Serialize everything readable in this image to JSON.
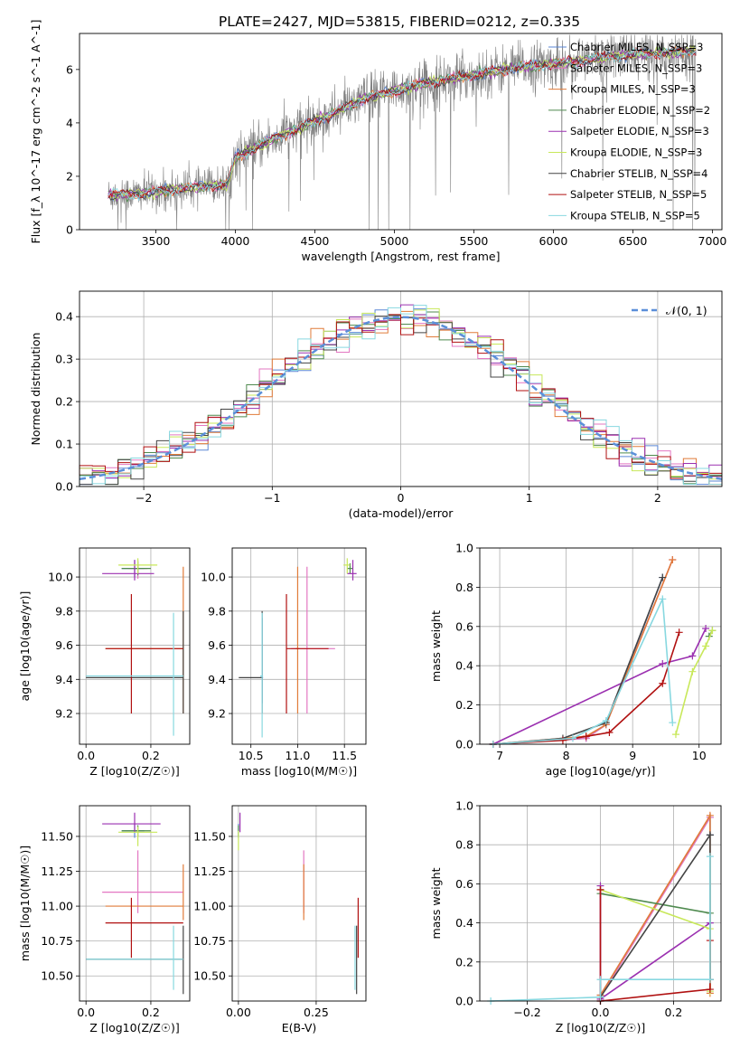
{
  "figure_title": "PLATE=2427, MJD=53815, FIBERID=0212, z=0.335",
  "colors": {
    "chabrier_miles": "#5b87d6",
    "salpeter_miles": "#e377c2",
    "kroupa_miles": "#e07b39",
    "chabrier_elodie": "#4f8a4f",
    "salpeter_elodie": "#9b30b0",
    "kroupa_elodie": "#c8e85a",
    "chabrier_stelib": "#444444",
    "salpeter_stelib": "#b01010",
    "kroupa_stelib": "#88d8e0",
    "data": "#808080",
    "normal": "#5b8fd9",
    "grid": "#b0b0b0"
  },
  "chart_data": [
    {
      "id": "spectrum",
      "type": "line",
      "title": "PLATE=2427, MJD=53815, FIBERID=0212, z=0.335",
      "xlabel": "wavelength [Angstrom, rest frame]",
      "ylabel": "Flux [f_λ 10^-17 erg cm^-2 s^-1 A^-1]",
      "xlim": [
        3020,
        7060
      ],
      "ylim": [
        0,
        7.35
      ],
      "xticks": [
        3500,
        4000,
        4500,
        5000,
        5500,
        6000,
        6500,
        7000
      ],
      "yticks": [
        0,
        2,
        4,
        6
      ],
      "legend_position": "top-right",
      "series": [
        {
          "name": "Chabrier MILES, N_SSP=3",
          "key": "chabrier_miles"
        },
        {
          "name": "Salpeter MILES, N_SSP=3",
          "key": "salpeter_miles"
        },
        {
          "name": "Kroupa MILES, N_SSP=3",
          "key": "kroupa_miles"
        },
        {
          "name": "Chabrier ELODIE, N_SSP=2",
          "key": "chabrier_elodie"
        },
        {
          "name": "Salpeter ELODIE, N_SSP=3",
          "key": "salpeter_elodie"
        },
        {
          "name": "Kroupa ELODIE, N_SSP=3",
          "key": "kroupa_elodie"
        },
        {
          "name": "Chabrier STELIB, N_SSP=4",
          "key": "chabrier_stelib"
        },
        {
          "name": "Salpeter STELIB, N_SSP=5",
          "key": "salpeter_stelib"
        },
        {
          "name": "Kroupa STELIB, N_SSP=5",
          "key": "kroupa_stelib"
        }
      ],
      "continuum": {
        "x": [
          3200,
          3400,
          3600,
          3800,
          3950,
          4000,
          4200,
          4400,
          4600,
          4800,
          5000,
          5200,
          5400,
          5600,
          5800,
          6000,
          6200,
          6400,
          6600,
          6800,
          6900
        ],
        "y": [
          1.3,
          1.35,
          1.5,
          1.6,
          1.7,
          2.7,
          3.3,
          3.8,
          4.3,
          4.9,
          5.2,
          5.5,
          5.7,
          5.9,
          6.1,
          6.2,
          6.35,
          6.5,
          6.6,
          6.65,
          6.7
        ]
      }
    },
    {
      "id": "residuals",
      "type": "bar",
      "xlabel": "(data-model)/error",
      "ylabel": "Normed distribution",
      "xlim": [
        -2.5,
        2.5
      ],
      "ylim": [
        0,
        0.46
      ],
      "xticks": [
        -2,
        -1,
        0,
        1,
        2
      ],
      "yticks": [
        0.0,
        0.1,
        0.2,
        0.3,
        0.4
      ],
      "legend": "𝒩(0, 1)",
      "legend_position": "top-right",
      "bin_width": 0.1
    },
    {
      "id": "z_age",
      "type": "scatter",
      "xlabel": "Z [log10(Z/Z☉)]",
      "ylabel": "age [log10(age/yr)]",
      "xlim": [
        -0.02,
        0.32
      ],
      "ylim": [
        9.02,
        10.17
      ],
      "xticks": [
        0.0,
        0.2
      ],
      "yticks": [
        9.2,
        9.4,
        9.6,
        9.8,
        10.0
      ],
      "points": [
        {
          "key": "chabrier_miles",
          "x": 0.15,
          "y": 10.05,
          "xerr": [
            0.04,
            0.03
          ],
          "yerr": [
            0.05,
            0.05
          ]
        },
        {
          "key": "salpeter_miles",
          "x": 0.16,
          "y": 10.05,
          "xerr": [
            0.03,
            0.03
          ],
          "yerr": [
            0.06,
            0.05
          ]
        },
        {
          "key": "kroupa_miles",
          "x": 0.3,
          "y": 9.58,
          "xerr": [
            0.24,
            0.0
          ],
          "yerr": [
            0.38,
            0.48
          ]
        },
        {
          "key": "chabrier_elodie",
          "x": 0.16,
          "y": 10.05,
          "xerr": [
            0.05,
            0.04
          ],
          "yerr": [
            0.04,
            0.04
          ]
        },
        {
          "key": "salpeter_elodie",
          "x": 0.15,
          "y": 10.02,
          "xerr": [
            0.1,
            0.06
          ],
          "yerr": [
            0.04,
            0.08
          ]
        },
        {
          "key": "kroupa_elodie",
          "x": 0.16,
          "y": 10.07,
          "xerr": [
            0.06,
            0.06
          ],
          "yerr": [
            0.05,
            0.04
          ]
        },
        {
          "key": "chabrier_stelib",
          "x": 0.3,
          "y": 9.41,
          "xerr": [
            0.3,
            0.0
          ],
          "yerr": [
            0.21,
            0.39
          ]
        },
        {
          "key": "salpeter_stelib",
          "x": 0.14,
          "y": 9.58,
          "xerr": [
            0.08,
            0.16
          ],
          "yerr": [
            0.38,
            0.32
          ]
        },
        {
          "key": "kroupa_stelib",
          "x": 0.27,
          "y": 9.42,
          "xerr": [
            0.27,
            0.03
          ],
          "yerr": [
            0.35,
            0.37
          ]
        }
      ]
    },
    {
      "id": "mass_age",
      "type": "scatter",
      "xlabel": "mass [log10(M/M☉)]",
      "xlim": [
        10.3,
        11.73
      ],
      "ylim": [
        9.02,
        10.17
      ],
      "xticks": [
        10.5,
        11.0,
        11.5
      ],
      "yticks": [
        9.2,
        9.4,
        9.6,
        9.8,
        10.0
      ],
      "points": [
        {
          "key": "chabrier_miles",
          "x": 10.62,
          "y": 9.41,
          "xerr": [
            0.02,
            0.01
          ],
          "yerr": [
            0.15,
            0.35
          ]
        },
        {
          "key": "salpeter_miles",
          "x": 11.1,
          "y": 9.58,
          "xerr": [
            0.17,
            0.3
          ],
          "yerr": [
            0.38,
            0.48
          ]
        },
        {
          "key": "kroupa_miles",
          "x": 11.0,
          "y": 9.58,
          "xerr": [
            0.02,
            0.02
          ],
          "yerr": [
            0.38,
            0.48
          ]
        },
        {
          "key": "chabrier_elodie",
          "x": 11.56,
          "y": 10.05,
          "xerr": [
            0.03,
            0.03
          ],
          "yerr": [
            0.03,
            0.03
          ]
        },
        {
          "key": "salpeter_elodie",
          "x": 11.59,
          "y": 10.02,
          "xerr": [
            0.06,
            0.04
          ],
          "yerr": [
            0.04,
            0.08
          ]
        },
        {
          "key": "kroupa_elodie",
          "x": 11.53,
          "y": 10.07,
          "xerr": [
            0.04,
            0.03
          ],
          "yerr": [
            0.05,
            0.04
          ]
        },
        {
          "key": "chabrier_stelib",
          "x": 10.62,
          "y": 9.41,
          "xerr": [
            0.25,
            0.0
          ],
          "yerr": [
            0.21,
            0.39
          ]
        },
        {
          "key": "salpeter_stelib",
          "x": 10.88,
          "y": 9.58,
          "xerr": [
            0.0,
            0.45
          ],
          "yerr": [
            0.38,
            0.32
          ]
        },
        {
          "key": "kroupa_stelib",
          "x": 10.62,
          "y": 9.42,
          "xerr": [
            0.02,
            0.01
          ],
          "yerr": [
            0.36,
            0.37
          ]
        }
      ]
    },
    {
      "id": "age_weight",
      "type": "line",
      "xlabel": "age [log10(age/yr)]",
      "ylabel": "mass weight",
      "xlim": [
        6.7,
        10.33
      ],
      "ylim": [
        0,
        1.0
      ],
      "xticks": [
        7,
        8,
        9,
        10
      ],
      "yticks": [
        0.0,
        0.2,
        0.4,
        0.6,
        0.8,
        1.0
      ],
      "series": [
        {
          "key": "chabrier_miles",
          "x": [
            6.9,
            8.3,
            8.6,
            9.45
          ],
          "y": [
            0.0,
            0.03,
            0.1,
            0.85
          ]
        },
        {
          "key": "salpeter_miles",
          "x": [
            6.9,
            8.3,
            8.6,
            9.6
          ],
          "y": [
            0.0,
            0.03,
            0.1,
            0.94
          ]
        },
        {
          "key": "kroupa_miles",
          "x": [
            6.9,
            8.3,
            8.6,
            9.6
          ],
          "y": [
            0.0,
            0.04,
            0.1,
            0.94
          ]
        },
        {
          "key": "chabrier_elodie",
          "x": [
            10.15,
            10.2
          ],
          "y": [
            0.55,
            0.58
          ]
        },
        {
          "key": "salpeter_elodie",
          "x": [
            6.9,
            9.45,
            9.9,
            10.1
          ],
          "y": [
            0.0,
            0.41,
            0.45,
            0.59
          ]
        },
        {
          "key": "kroupa_elodie",
          "x": [
            9.65,
            9.9,
            10.1,
            10.2
          ],
          "y": [
            0.05,
            0.37,
            0.5,
            0.58
          ]
        },
        {
          "key": "chabrier_stelib",
          "x": [
            6.9,
            7.95,
            8.6,
            9.45
          ],
          "y": [
            0.0,
            0.03,
            0.11,
            0.85
          ]
        },
        {
          "key": "salpeter_stelib",
          "x": [
            6.9,
            7.95,
            8.3,
            8.65,
            9.45,
            9.7
          ],
          "y": [
            0.0,
            0.02,
            0.04,
            0.06,
            0.31,
            0.57
          ]
        },
        {
          "key": "kroupa_stelib",
          "x": [
            6.9,
            8.1,
            8.6,
            9.45,
            9.6
          ],
          "y": [
            0.0,
            0.03,
            0.12,
            0.74,
            0.11
          ]
        }
      ]
    },
    {
      "id": "z_mass",
      "type": "scatter",
      "xlabel": "Z [log10(Z/Z☉)]",
      "ylabel": "mass [log10(M/M☉)]",
      "xlim": [
        -0.02,
        0.32
      ],
      "ylim": [
        10.32,
        11.72
      ],
      "xticks": [
        0.0,
        0.2
      ],
      "yticks": [
        10.5,
        10.75,
        11.0,
        11.25,
        11.5
      ],
      "points": [
        {
          "key": "chabrier_miles",
          "x": 0.15,
          "y": 11.54,
          "xerr": [
            0.04,
            0.03
          ],
          "yerr": [
            0.05,
            0.05
          ]
        },
        {
          "key": "salpeter_miles",
          "x": 0.16,
          "y": 11.1,
          "xerr": [
            0.11,
            0.14
          ],
          "yerr": [
            0.15,
            0.3
          ]
        },
        {
          "key": "kroupa_miles",
          "x": 0.3,
          "y": 11.0,
          "xerr": [
            0.24,
            0.0
          ],
          "yerr": [
            0.1,
            0.3
          ]
        },
        {
          "key": "chabrier_elodie",
          "x": 0.16,
          "y": 11.54,
          "xerr": [
            0.05,
            0.04
          ],
          "yerr": [
            0.04,
            0.04
          ]
        },
        {
          "key": "salpeter_elodie",
          "x": 0.15,
          "y": 11.59,
          "xerr": [
            0.1,
            0.08
          ],
          "yerr": [
            0.06,
            0.08
          ]
        },
        {
          "key": "kroupa_elodie",
          "x": 0.16,
          "y": 11.53,
          "xerr": [
            0.06,
            0.06
          ],
          "yerr": [
            0.1,
            0.04
          ]
        },
        {
          "key": "chabrier_stelib",
          "x": 0.3,
          "y": 10.62,
          "xerr": [
            0.3,
            0.0
          ],
          "yerr": [
            0.25,
            0.24
          ]
        },
        {
          "key": "salpeter_stelib",
          "x": 0.14,
          "y": 10.88,
          "xerr": [
            0.08,
            0.16
          ],
          "yerr": [
            0.25,
            0.18
          ]
        },
        {
          "key": "kroupa_stelib",
          "x": 0.27,
          "y": 10.62,
          "xerr": [
            0.27,
            0.03
          ],
          "yerr": [
            0.22,
            0.24
          ]
        }
      ]
    },
    {
      "id": "ebv_mass",
      "type": "scatter",
      "xlabel": "E(B-V)",
      "xlim": [
        -0.02,
        0.41
      ],
      "ylim": [
        10.32,
        11.72
      ],
      "xticks": [
        0.0,
        0.25
      ],
      "yticks": [
        10.5,
        10.75,
        11.0,
        11.25,
        11.5
      ],
      "points": [
        {
          "key": "chabrier_miles",
          "x": 0.0,
          "y": 11.54,
          "xerr": [
            0,
            0
          ],
          "yerr": [
            0.05,
            0.05
          ]
        },
        {
          "key": "salpeter_miles",
          "x": 0.21,
          "y": 11.1,
          "xerr": [
            0,
            0
          ],
          "yerr": [
            0.15,
            0.3
          ]
        },
        {
          "key": "kroupa_miles",
          "x": 0.21,
          "y": 11.1,
          "xerr": [
            0,
            0
          ],
          "yerr": [
            0.2,
            0.2
          ]
        },
        {
          "key": "chabrier_elodie",
          "x": 0.0,
          "y": 11.54,
          "xerr": [
            0,
            0
          ],
          "yerr": [
            0.04,
            0.04
          ]
        },
        {
          "key": "salpeter_elodie",
          "x": 0.005,
          "y": 11.59,
          "xerr": [
            0,
            0
          ],
          "yerr": [
            0.06,
            0.08
          ]
        },
        {
          "key": "kroupa_elodie",
          "x": 0.0,
          "y": 11.5,
          "xerr": [
            0,
            0
          ],
          "yerr": [
            0.1,
            0.04
          ]
        },
        {
          "key": "chabrier_stelib",
          "x": 0.38,
          "y": 10.62,
          "xerr": [
            0,
            0
          ],
          "yerr": [
            0.25,
            0.24
          ]
        },
        {
          "key": "salpeter_stelib",
          "x": 0.385,
          "y": 10.88,
          "xerr": [
            0,
            0
          ],
          "yerr": [
            0.25,
            0.18
          ]
        },
        {
          "key": "kroupa_stelib",
          "x": 0.375,
          "y": 10.62,
          "xerr": [
            0,
            0
          ],
          "yerr": [
            0.22,
            0.24
          ]
        }
      ]
    },
    {
      "id": "z_weight",
      "type": "line",
      "xlabel": "Z [log10(Z/Z☉)]",
      "ylabel": "mass weight",
      "xlim": [
        -0.33,
        0.33
      ],
      "ylim": [
        0,
        1.0
      ],
      "xticks": [
        -0.2,
        0.0,
        0.2
      ],
      "yticks": [
        0.0,
        0.2,
        0.4,
        0.6,
        0.8,
        1.0
      ],
      "series": [
        {
          "key": "chabrier_miles",
          "x": [
            0.0,
            0.3,
            0.3
          ],
          "y": [
            0.03,
            0.94,
            0.85
          ]
        },
        {
          "key": "salpeter_miles",
          "x": [
            0.0,
            0.3
          ],
          "y": [
            0.02,
            0.94
          ]
        },
        {
          "key": "kroupa_miles",
          "x": [
            0.0,
            0.3,
            0.3
          ],
          "y": [
            0.03,
            0.95,
            0.04
          ]
        },
        {
          "key": "chabrier_elodie",
          "x": [
            0.0,
            0.3
          ],
          "y": [
            0.55,
            0.45
          ]
        },
        {
          "key": "salpeter_elodie",
          "x": [
            0.0,
            0.0,
            0.3
          ],
          "y": [
            0.59,
            0.01,
            0.4
          ]
        },
        {
          "key": "kroupa_elodie",
          "x": [
            0.0,
            0.3,
            0.3
          ],
          "y": [
            0.57,
            0.37,
            0.05
          ]
        },
        {
          "key": "chabrier_stelib",
          "x": [
            0.0,
            0.0,
            0.3,
            0.3
          ],
          "y": [
            0.0,
            0.02,
            0.85,
            0.11
          ]
        },
        {
          "key": "salpeter_stelib",
          "x": [
            0.0,
            0.0,
            0.3,
            0.3
          ],
          "y": [
            0.57,
            0.0,
            0.06,
            0.31
          ]
        },
        {
          "key": "kroupa_stelib",
          "x": [
            -0.3,
            0.0,
            0.0,
            0.3,
            0.3
          ],
          "y": [
            0.0,
            0.02,
            0.11,
            0.11,
            0.74
          ]
        }
      ]
    }
  ]
}
